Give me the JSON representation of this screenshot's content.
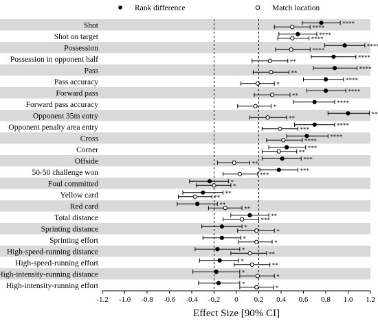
{
  "chart_data": {
    "type": "forest",
    "xlabel": "Effect Size [90% CI]",
    "xlim": [
      -1.2,
      1.2
    ],
    "x_ticks": [
      "-1.2",
      "-1.0",
      "-0.8",
      "-0.6",
      "-0.4",
      "-0.2",
      "0",
      "0.2",
      "0.4",
      "0.6",
      "0.8",
      "1.0",
      "1.2"
    ],
    "reference_lines": [
      -0.2,
      0.2
    ],
    "legend": {
      "placement": "top",
      "entries": [
        {
          "label": "Rank difference",
          "marker": "filled"
        },
        {
          "label": "Match location",
          "marker": "open"
        }
      ]
    },
    "background_bands": "alternating gray rows",
    "categories": [
      "Shot",
      "Shot on target",
      "Possession",
      "Possession in opponent half",
      "Pass",
      "Pass accuracy",
      "Forward pass",
      "Forward pass accuracy",
      "Opponent 35m entry",
      "Opponent penalty area entry",
      "Cross",
      "Corner",
      "Offside",
      "50-50 challenge won",
      "Foul committed",
      "Yellow card",
      "Red card",
      "Total distance",
      "Sprinting distance",
      "Sprinting effort",
      "High-speed-running distance",
      "High-speed-running effort",
      "High-intensity-running distance",
      "High-intensity-running effort"
    ],
    "series": [
      {
        "name": "Rank difference",
        "marker": "filled",
        "values": [
          {
            "est": 0.76,
            "lo": 0.59,
            "hi": 0.93,
            "sig": "****"
          },
          {
            "est": 0.55,
            "lo": 0.38,
            "hi": 0.72,
            "sig": "****"
          },
          {
            "est": 0.97,
            "lo": 0.79,
            "hi": 1.15,
            "sig": "****"
          },
          {
            "est": 0.87,
            "lo": 0.67,
            "hi": 1.07,
            "sig": "****"
          },
          {
            "est": 0.88,
            "lo": 0.69,
            "hi": 1.08,
            "sig": "****"
          },
          {
            "est": 0.8,
            "lo": 0.6,
            "hi": 0.96,
            "sig": "****"
          },
          {
            "est": 0.8,
            "lo": 0.63,
            "hi": 0.98,
            "sig": "****"
          },
          {
            "est": 0.7,
            "lo": 0.51,
            "hi": 0.88,
            "sig": "****"
          },
          {
            "est": 1.0,
            "lo": 0.82,
            "hi": 1.19,
            "sig": "****"
          },
          {
            "est": 0.7,
            "lo": 0.52,
            "hi": 0.88,
            "sig": "****"
          },
          {
            "est": 0.63,
            "lo": 0.45,
            "hi": 0.82,
            "sig": "****"
          },
          {
            "est": 0.45,
            "lo": 0.29,
            "hi": 0.62,
            "sig": "***"
          },
          {
            "est": 0.41,
            "lo": 0.23,
            "hi": 0.58,
            "sig": "***"
          },
          {
            "est": 0.38,
            "lo": 0.21,
            "hi": 0.55,
            "sig": "***"
          },
          {
            "est": -0.24,
            "lo": -0.42,
            "hi": -0.07,
            "sig": "*"
          },
          {
            "est": -0.3,
            "lo": -0.48,
            "hi": -0.12,
            "sig": "**"
          },
          {
            "est": -0.35,
            "lo": -0.53,
            "hi": -0.17,
            "sig": "**"
          },
          {
            "est": 0.12,
            "lo": -0.05,
            "hi": 0.29,
            "sig": "**"
          },
          {
            "est": -0.13,
            "lo": -0.31,
            "hi": 0.05,
            "sig": "*"
          },
          {
            "est": -0.13,
            "lo": -0.3,
            "hi": 0.04,
            "sig": "*"
          },
          {
            "est": -0.17,
            "lo": -0.37,
            "hi": 0.03,
            "sig": "*"
          },
          {
            "est": -0.15,
            "lo": -0.33,
            "hi": 0.02,
            "sig": "*"
          },
          {
            "est": -0.18,
            "lo": -0.39,
            "hi": 0.03,
            "sig": "*"
          },
          {
            "est": -0.16,
            "lo": -0.34,
            "hi": 0.03,
            "sig": "*"
          }
        ]
      },
      {
        "name": "Match location",
        "marker": "open",
        "values": [
          {
            "est": 0.5,
            "lo": 0.34,
            "hi": 0.66,
            "sig": "****"
          },
          {
            "est": 0.5,
            "lo": 0.37,
            "hi": 0.65,
            "sig": "****"
          },
          {
            "est": 0.49,
            "lo": 0.35,
            "hi": 0.66,
            "sig": "****"
          },
          {
            "est": 0.3,
            "lo": 0.14,
            "hi": 0.46,
            "sig": "**"
          },
          {
            "est": 0.31,
            "lo": 0.15,
            "hi": 0.47,
            "sig": "**"
          },
          {
            "est": 0.19,
            "lo": 0.04,
            "hi": 0.34,
            "sig": "*"
          },
          {
            "est": 0.32,
            "lo": 0.16,
            "hi": 0.48,
            "sig": "**"
          },
          {
            "est": 0.17,
            "lo": 0.01,
            "hi": 0.31,
            "sig": "*"
          },
          {
            "est": 0.28,
            "lo": 0.12,
            "hi": 0.45,
            "sig": "**"
          },
          {
            "est": 0.39,
            "lo": 0.23,
            "hi": 0.55,
            "sig": "***"
          },
          {
            "est": 0.42,
            "lo": 0.27,
            "hi": 0.59,
            "sig": "****"
          },
          {
            "est": 0.38,
            "lo": 0.23,
            "hi": 0.54,
            "sig": "**"
          },
          {
            "est": -0.02,
            "lo": -0.17,
            "hi": 0.12,
            "sig": "**"
          },
          {
            "est": 0.03,
            "lo": -0.12,
            "hi": 0.19,
            "sig": "***"
          },
          {
            "est": -0.2,
            "lo": -0.36,
            "hi": -0.05,
            "sig": "*"
          },
          {
            "est": -0.37,
            "lo": -0.52,
            "hi": -0.22,
            "sig": "**"
          },
          {
            "est": -0.1,
            "lo": -0.25,
            "hi": 0.05,
            "sig": "**"
          },
          {
            "est": 0.05,
            "lo": -0.12,
            "hi": 0.2,
            "sig": "***"
          },
          {
            "est": 0.18,
            "lo": 0.01,
            "hi": 0.34,
            "sig": "*"
          },
          {
            "est": 0.18,
            "lo": 0.02,
            "hi": 0.32,
            "sig": "*"
          },
          {
            "est": 0.12,
            "lo": -0.05,
            "hi": 0.27,
            "sig": "**"
          },
          {
            "est": 0.14,
            "lo": -0.02,
            "hi": 0.3,
            "sig": "**"
          },
          {
            "est": 0.19,
            "lo": 0.03,
            "hi": 0.34,
            "sig": "*"
          },
          {
            "est": 0.18,
            "lo": 0.03,
            "hi": 0.33,
            "sig": "*"
          }
        ]
      }
    ]
  }
}
